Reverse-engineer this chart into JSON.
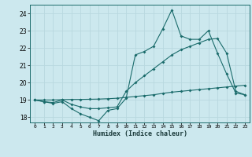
{
  "xlabel": "Humidex (Indice chaleur)",
  "bg_color": "#cce8ee",
  "grid_color": "#b8d8df",
  "line_color": "#1a6b6b",
  "xlim": [
    -0.5,
    23.5
  ],
  "ylim": [
    17.7,
    24.5
  ],
  "xticks": [
    0,
    1,
    2,
    3,
    4,
    5,
    6,
    7,
    8,
    9,
    10,
    11,
    12,
    13,
    14,
    15,
    16,
    17,
    18,
    19,
    20,
    21,
    22,
    23
  ],
  "yticks": [
    18,
    19,
    20,
    21,
    22,
    23,
    24
  ],
  "line1_y": [
    19.0,
    18.9,
    18.8,
    18.9,
    18.5,
    18.2,
    18.0,
    17.8,
    18.4,
    18.5,
    19.1,
    21.6,
    21.8,
    22.1,
    23.1,
    24.2,
    22.7,
    22.5,
    22.5,
    23.0,
    21.7,
    20.5,
    19.4,
    19.3
  ],
  "line2_y": [
    19.0,
    18.9,
    18.85,
    19.0,
    18.75,
    18.6,
    18.5,
    18.5,
    18.55,
    18.6,
    19.5,
    20.0,
    20.4,
    20.8,
    21.2,
    21.6,
    21.9,
    22.1,
    22.3,
    22.5,
    22.55,
    21.7,
    19.5,
    19.3
  ],
  "line3_y": [
    19.0,
    19.0,
    19.0,
    19.02,
    19.03,
    19.03,
    19.04,
    19.05,
    19.07,
    19.1,
    19.15,
    19.2,
    19.25,
    19.3,
    19.38,
    19.45,
    19.5,
    19.55,
    19.6,
    19.65,
    19.7,
    19.75,
    19.8,
    19.85
  ]
}
